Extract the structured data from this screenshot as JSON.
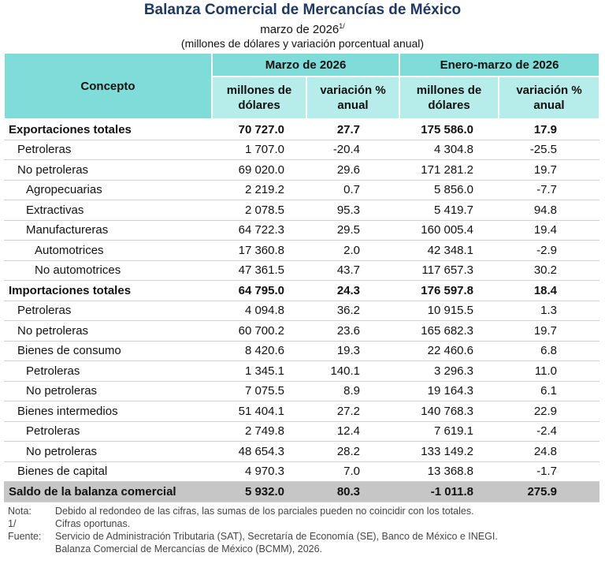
{
  "header": {
    "title": "Balanza Comercial de Mercancías de México",
    "subtitle": "marzo de 2026",
    "subtitle_note": "1/",
    "units": "(millones de dólares y variación porcentual anual)"
  },
  "table": {
    "concept_header": "Concepto",
    "groups": [
      "Marzo de 2026",
      "Enero-marzo de 2026"
    ],
    "subheaders": [
      "millones de dólares",
      "variación % anual",
      "millones de dólares",
      "variación % anual"
    ],
    "rows": [
      {
        "concept": "Exportaciones totales",
        "level": 0,
        "style": "bold",
        "values": [
          "70 727.0",
          "27.7",
          "175 586.0",
          "17.9"
        ]
      },
      {
        "concept": "Petroleras",
        "level": 1,
        "values": [
          "1 707.0",
          "-20.4",
          "4 304.8",
          "-25.5"
        ]
      },
      {
        "concept": "No petroleras",
        "level": 1,
        "values": [
          "69 020.0",
          "29.6",
          "171 281.2",
          "19.7"
        ]
      },
      {
        "concept": "Agropecuarias",
        "level": 2,
        "values": [
          "2 219.2",
          "0.7",
          "5 856.0",
          "-7.7"
        ]
      },
      {
        "concept": "Extractivas",
        "level": 2,
        "values": [
          "2 078.5",
          "95.3",
          "5 419.7",
          "94.8"
        ]
      },
      {
        "concept": "Manufactureras",
        "level": 2,
        "values": [
          "64 722.3",
          "29.5",
          "160 005.4",
          "19.4"
        ]
      },
      {
        "concept": "Automotrices",
        "level": 3,
        "values": [
          "17 360.8",
          "2.0",
          "42 348.1",
          "-2.9"
        ]
      },
      {
        "concept": "No automotrices",
        "level": 3,
        "values": [
          "47 361.5",
          "43.7",
          "117 657.3",
          "30.2"
        ]
      },
      {
        "concept": "Importaciones totales",
        "level": 0,
        "style": "bold",
        "values": [
          "64 795.0",
          "24.3",
          "176 597.8",
          "18.4"
        ]
      },
      {
        "concept": "Petroleras",
        "level": 1,
        "values": [
          "4 094.8",
          "36.2",
          "10 915.5",
          "1.3"
        ]
      },
      {
        "concept": "No petroleras",
        "level": 1,
        "values": [
          "60 700.2",
          "23.6",
          "165 682.3",
          "19.7"
        ]
      },
      {
        "concept": "Bienes de consumo",
        "level": 1,
        "values": [
          "8 420.6",
          "19.3",
          "22 460.6",
          "6.8"
        ]
      },
      {
        "concept": "Petroleras",
        "level": 2,
        "values": [
          "1 345.1",
          "140.1",
          "3 296.3",
          "11.0"
        ]
      },
      {
        "concept": "No petroleras",
        "level": 2,
        "values": [
          "7 075.5",
          "8.9",
          "19 164.3",
          "6.1"
        ]
      },
      {
        "concept": "Bienes intermedios",
        "level": 1,
        "values": [
          "51 404.1",
          "27.2",
          "140 768.3",
          "22.9"
        ]
      },
      {
        "concept": "Petroleras",
        "level": 2,
        "values": [
          "2 749.8",
          "12.4",
          "7 619.1",
          "-2.4"
        ]
      },
      {
        "concept": "No petroleras",
        "level": 2,
        "values": [
          "48 654.3",
          "28.2",
          "133 149.2",
          "24.8"
        ]
      },
      {
        "concept": "Bienes de capital",
        "level": 1,
        "values": [
          "4 970.3",
          "7.0",
          "13 368.8",
          "-1.7"
        ]
      },
      {
        "concept": "Saldo de la balanza comercial",
        "level": 0,
        "style": "shaded",
        "values": [
          "5 932.0",
          "80.3",
          "-1 011.8",
          "275.9"
        ]
      }
    ]
  },
  "notes": [
    {
      "label": "Nota:",
      "text": [
        "Debido al redondeo de las cifras, las sumas de los parciales pueden no coincidir con los totales."
      ]
    },
    {
      "label": "1/",
      "text": [
        "Cifras oportunas."
      ]
    },
    {
      "label": "Fuente:",
      "text": [
        "Servicio de Administración Tributaria (SAT), Secretaría de Economía (SE), Banco de México e INEGI.",
        "Balanza Comercial de Mercancías de México (BCMM), 2026."
      ]
    }
  ]
}
